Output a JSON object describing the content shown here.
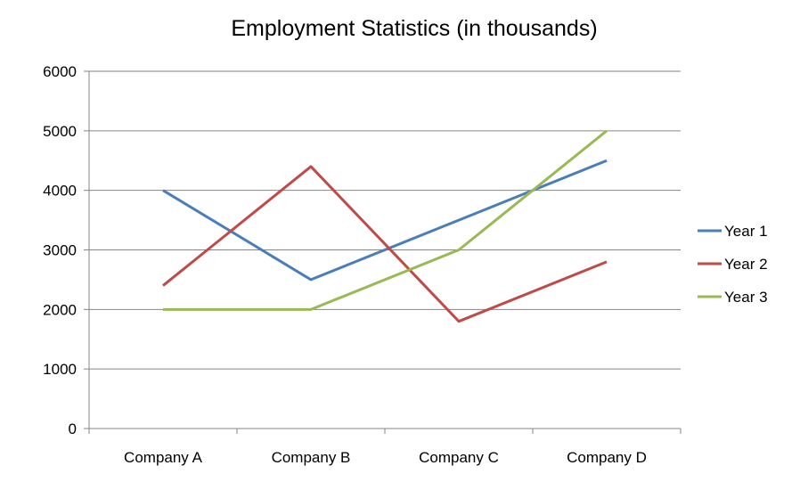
{
  "chart_data": {
    "type": "line",
    "title": "Employment Statistics (in thousands)",
    "xlabel": "",
    "ylabel": "",
    "categories": [
      "Company A",
      "Company B",
      "Company C",
      "Company D"
    ],
    "ylim": [
      0,
      6000
    ],
    "yticks": [
      0,
      1000,
      2000,
      3000,
      4000,
      5000,
      6000
    ],
    "grid": true,
    "legend_position": "right",
    "series": [
      {
        "name": "Year 1",
        "color": "#4a7ebb",
        "values": [
          4000,
          2500,
          3500,
          4500
        ]
      },
      {
        "name": "Year 2",
        "color": "#be4b48",
        "values": [
          2400,
          4400,
          1800,
          2800
        ]
      },
      {
        "name": "Year 3",
        "color": "#98b954",
        "values": [
          2000,
          2000,
          3000,
          5000
        ]
      }
    ]
  }
}
